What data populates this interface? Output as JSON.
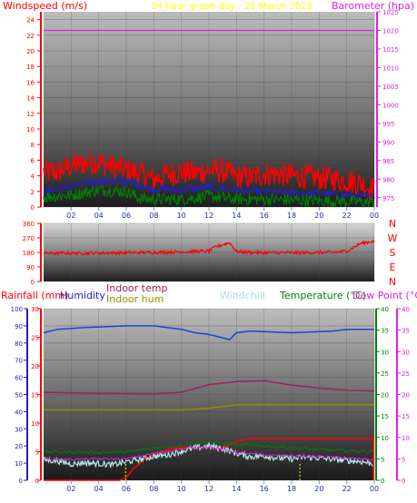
{
  "chart_data": [
    {
      "type": "line",
      "title": "24 hour graph day : 25 March 2023",
      "ylabel_left": "Windspeed (m/s)",
      "ylabel_right": "Barometer (hpa)",
      "x_ticks": [
        "02",
        "04",
        "06",
        "08",
        "10",
        "12",
        "14",
        "16",
        "18",
        "20",
        "22",
        "00"
      ],
      "ylim_left": [
        0,
        25
      ],
      "yticks_left": [
        0,
        2,
        4,
        6,
        8,
        10,
        12,
        14,
        16,
        18,
        20,
        22,
        24
      ],
      "ylim_right": [
        972.5,
        1025
      ],
      "yticks_right": [
        975,
        980,
        985,
        990,
        995,
        1000,
        1005,
        1010,
        1015,
        1020,
        1025
      ],
      "grid": true,
      "series": [
        {
          "name": "Barometer (hpa)",
          "axis": "right",
          "color": "#e020e0",
          "hours": [
            0,
            24
          ],
          "values": [
            1020,
            1020
          ]
        },
        {
          "name": "gust",
          "axis": "left",
          "color": "#ff0000",
          "hours": [
            0,
            1,
            2,
            3,
            4,
            5,
            6,
            7,
            8,
            9,
            10,
            11,
            12,
            13,
            14,
            15,
            16,
            17,
            18,
            19,
            20,
            21,
            22,
            23,
            24
          ],
          "values": [
            4.5,
            4.5,
            5.3,
            5.6,
            5.8,
            5.2,
            4.8,
            4.3,
            3.5,
            4.2,
            4.5,
            4.3,
            4.7,
            4.6,
            3.9,
            3.8,
            4.3,
            4.2,
            4.0,
            3.9,
            3.7,
            3.6,
            3.4,
            3.1,
            2.2
          ]
        },
        {
          "name": "average",
          "axis": "left",
          "color": "#2020d0",
          "hours": [
            0,
            2,
            4,
            6,
            7,
            8,
            10,
            12,
            14,
            16,
            18,
            20,
            22,
            24
          ],
          "values": [
            2.0,
            2.6,
            3.3,
            3.3,
            2.8,
            2.3,
            2.2,
            2.5,
            2.2,
            1.9,
            1.8,
            1.7,
            1.5,
            1.3
          ]
        },
        {
          "name": "windspeed",
          "axis": "left",
          "color": "#008000",
          "hours": [
            0,
            2,
            4,
            6,
            7,
            8,
            10,
            12,
            14,
            16,
            18,
            20,
            22,
            24
          ],
          "values": [
            1.3,
            1.5,
            2.2,
            2.0,
            1.1,
            1.0,
            1.0,
            1.4,
            1.0,
            1.0,
            0.9,
            0.8,
            0.7,
            0.6
          ]
        }
      ]
    },
    {
      "type": "line",
      "ylabel_right": [
        "N",
        "W",
        "S",
        "E",
        "N"
      ],
      "ylim": [
        0,
        360
      ],
      "yticks": [
        0,
        90,
        180,
        270,
        360
      ],
      "x_ticks": [],
      "series": [
        {
          "name": "Wind direction",
          "color": "#ff0000",
          "hours": [
            0,
            3,
            6,
            9,
            12,
            12.5,
            13.5,
            14,
            15,
            18,
            21,
            22,
            23,
            24
          ],
          "values": [
            175,
            175,
            178,
            182,
            188,
            215,
            240,
            185,
            180,
            178,
            180,
            188,
            235,
            250
          ]
        }
      ]
    },
    {
      "type": "line",
      "labels": {
        "rainfall": "Rainfall (mm)",
        "humidity": "Humidity",
        "indoor_temp": "Indoor temp",
        "indoor_hum": "Indoor hum",
        "windchill": "Windchill",
        "temperature": "Temperature (°C)",
        "dewpoint": "Dew Point (°C)"
      },
      "x_ticks": [
        "02",
        "04",
        "06",
        "08",
        "10",
        "12",
        "14",
        "16",
        "18",
        "20",
        "22",
        "00"
      ],
      "axes": {
        "humidity": {
          "ylim": [
            0,
            100
          ],
          "yticks": [
            0,
            10,
            20,
            30,
            40,
            50,
            60,
            70,
            80,
            90,
            100
          ]
        },
        "rainfall": {
          "ylim": [
            0,
            30
          ],
          "yticks": [
            0,
            5,
            10,
            15,
            20,
            25,
            30
          ]
        },
        "temperature": {
          "ylim": [
            0,
            40
          ],
          "yticks": [
            0,
            5,
            10,
            15,
            20,
            25,
            30,
            35,
            40
          ]
        },
        "dewpoint": {
          "ylim": [
            0,
            40
          ],
          "yticks": [
            0,
            5,
            10,
            15,
            20,
            25,
            30,
            35,
            40
          ]
        }
      },
      "series": [
        {
          "name": "Humidity",
          "axis": "humidity",
          "color": "#2040e0",
          "hours": [
            0,
            1,
            3,
            6,
            8,
            10,
            11,
            12,
            13,
            13.5,
            14,
            15,
            18,
            21,
            22,
            24
          ],
          "values": [
            86,
            88,
            89,
            90,
            90,
            88,
            86,
            85,
            83,
            82,
            86,
            87,
            86,
            87,
            88,
            88
          ]
        },
        {
          "name": "Indoor temp",
          "axis": "temperature",
          "color": "#a02060",
          "hours": [
            0,
            4,
            8,
            10,
            12,
            14,
            16,
            18,
            20,
            22,
            24
          ],
          "values": [
            20.5,
            20.3,
            20.2,
            20.5,
            22.3,
            23.0,
            23.2,
            22.2,
            21.5,
            21.0,
            20.8
          ]
        },
        {
          "name": "Indoor hum",
          "axis": "humidity",
          "color": "#909000",
          "hours": [
            0,
            6,
            8,
            10,
            12,
            14,
            16,
            18,
            20,
            22,
            24
          ],
          "values": [
            41,
            41,
            41,
            41,
            42,
            44,
            44,
            44,
            44,
            44,
            44
          ]
        },
        {
          "name": "Rainfall (mm)",
          "axis": "rainfall",
          "color": "#ff0000",
          "hours": [
            0,
            4,
            5.5,
            6,
            6.5,
            7,
            7.5,
            8,
            8.5,
            9,
            9.5,
            10,
            11,
            12,
            13,
            14,
            15,
            18,
            21,
            23,
            24
          ],
          "values": [
            0,
            0,
            0,
            0.5,
            2,
            3,
            4,
            4.5,
            5,
            5.4,
            5.6,
            5.7,
            5.7,
            5.7,
            5.7,
            6.8,
            7.3,
            7.3,
            7.3,
            7.3,
            7.3
          ]
        },
        {
          "name": "Windchill",
          "axis": "temperature",
          "color": "#b0e8e8",
          "hours": [
            0,
            1,
            2,
            3,
            4,
            5,
            6,
            7,
            8,
            9,
            10,
            11,
            12,
            13,
            14,
            15,
            16,
            17,
            18,
            19,
            20,
            21,
            22,
            23,
            24
          ],
          "values": [
            4.8,
            4.5,
            3.8,
            4.1,
            3.9,
            3.6,
            4.3,
            4.9,
            5.6,
            5.9,
            6.8,
            7.5,
            8.0,
            7.4,
            6.3,
            5.5,
            5.7,
            5.2,
            5.0,
            5.4,
            5.2,
            4.9,
            4.6,
            4.4,
            3.8
          ]
        },
        {
          "name": "Temperature (°C)",
          "axis": "temperature",
          "color": "#008000",
          "hours": [
            0,
            2,
            4,
            6,
            7,
            8,
            9,
            10,
            11,
            12,
            13,
            14,
            16,
            18,
            20,
            22,
            24
          ],
          "values": [
            6.6,
            6.6,
            6.5,
            6.6,
            7.0,
            7.5,
            7.8,
            8.2,
            8.8,
            9.0,
            8.7,
            8.3,
            8.0,
            7.6,
            7.2,
            6.9,
            6.7
          ]
        },
        {
          "name": "Dew Point (°C)",
          "axis": "dewpoint",
          "color": "#e020e0",
          "hours": [
            0,
            2,
            4,
            6,
            7,
            8,
            9,
            10,
            11,
            12,
            13,
            14,
            16,
            18,
            20,
            22,
            24
          ],
          "values": [
            4.9,
            4.9,
            5.0,
            5.0,
            5.6,
            6.3,
            6.8,
            7.3,
            7.6,
            7.8,
            7.2,
            6.5,
            5.9,
            5.7,
            5.5,
            5.2,
            4.8
          ]
        }
      ],
      "markers": [
        {
          "color": "#ffff00",
          "hours": 5.95
        },
        {
          "color": "#ffff00",
          "hours": 18.6
        }
      ]
    }
  ]
}
